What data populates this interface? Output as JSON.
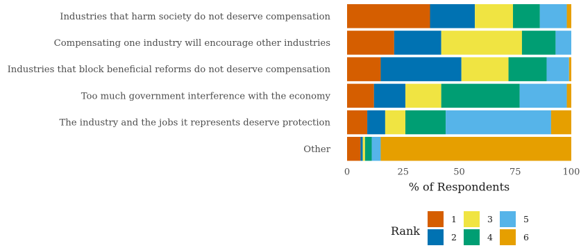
{
  "chart_data": {
    "type": "bar",
    "orientation": "horizontal",
    "stacked": true,
    "xlabel": "% of Respondents",
    "xlim": [
      0,
      100
    ],
    "xticks": [
      "0",
      "25",
      "50",
      "75",
      "100"
    ],
    "categories": [
      "Industries that harm society do not deserve compensation",
      "Compensating one industry will encourage other industries",
      "Industries that block beneficial reforms do not deserve compensation",
      "Too much government interference with the economy",
      "The industry and the jobs it represents deserve protection",
      "Other"
    ],
    "series": [
      {
        "name": "1",
        "color": "#D55E00",
        "values": [
          37,
          21,
          15,
          12,
          9,
          6
        ]
      },
      {
        "name": "2",
        "color": "#0072B2",
        "values": [
          20,
          21,
          36,
          14,
          8,
          1
        ]
      },
      {
        "name": "3",
        "color": "#F0E442",
        "values": [
          17,
          36,
          21,
          16,
          9,
          1
        ]
      },
      {
        "name": "4",
        "color": "#009E73",
        "values": [
          12,
          15,
          17,
          35,
          18,
          3
        ]
      },
      {
        "name": "5",
        "color": "#56B4E9",
        "values": [
          12,
          7,
          10,
          21,
          47,
          4
        ]
      },
      {
        "name": "6",
        "color": "#E69F00",
        "values": [
          2,
          0,
          1,
          2,
          9,
          85
        ]
      }
    ],
    "legend": {
      "title": "Rank",
      "position": "bottom"
    },
    "grid": false
  }
}
